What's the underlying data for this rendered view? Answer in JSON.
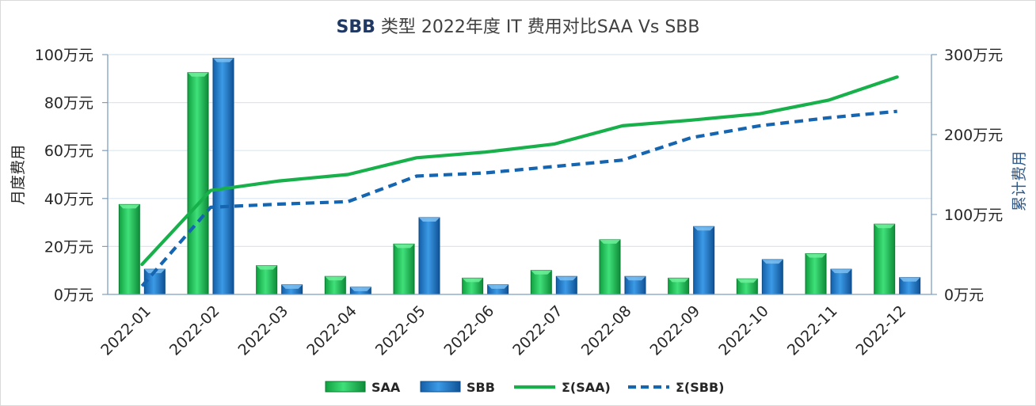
{
  "chart_data": {
    "type": "bar",
    "title_prefix": "SBB",
    "title_rest": " 类型 2022年度 IT 费用对比SAA Vs SBB",
    "ylabel": "月度费用",
    "y2label": "累计费用",
    "categories": [
      "2022-01",
      "2022-02",
      "2022-03",
      "2022-04",
      "2022-05",
      "2022-06",
      "2022-07",
      "2022-08",
      "2022-09",
      "2022-10",
      "2022-11",
      "2022-12"
    ],
    "ylim": [
      0,
      100
    ],
    "y2lim": [
      0,
      300
    ],
    "yticks": [
      "0万元",
      "20万元",
      "40万元",
      "60万元",
      "80万元",
      "100万元"
    ],
    "y2ticks": [
      "0万元",
      "100万元",
      "200万元",
      "300万元"
    ],
    "grid": true,
    "legend_position": "bottom",
    "series": [
      {
        "name": "SAA",
        "type": "bar",
        "axis": "left",
        "color": "#1fbf56",
        "values": [
          37.5,
          92.5,
          12.0,
          7.5,
          21.0,
          6.8,
          10.0,
          22.8,
          6.8,
          6.5,
          17.0,
          29.3
        ]
      },
      {
        "name": "SBB",
        "type": "bar",
        "axis": "left",
        "color": "#1f78c8",
        "values": [
          10.5,
          98.5,
          4.0,
          3.0,
          32.0,
          4.0,
          7.5,
          7.5,
          28.3,
          14.5,
          10.5,
          7.0
        ]
      },
      {
        "name": "Σ(SAA)",
        "type": "line",
        "axis": "right",
        "color": "#18b04a",
        "dash": "solid",
        "values": [
          37.5,
          130,
          142,
          150,
          171,
          178,
          188,
          211,
          218,
          226,
          243,
          272
        ]
      },
      {
        "name": "Σ(SBB)",
        "type": "line",
        "axis": "right",
        "color": "#1565b0",
        "dash": "dashed",
        "values": [
          10.5,
          109,
          113,
          116,
          148,
          152,
          160,
          168,
          196,
          211,
          221,
          229
        ]
      }
    ]
  }
}
